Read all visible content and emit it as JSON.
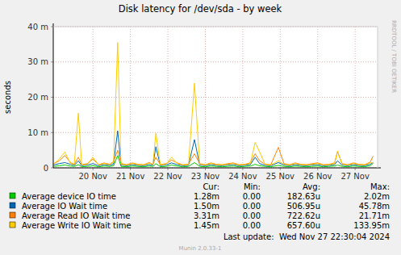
{
  "chart_data": {
    "type": "line",
    "title": "Disk latency for /dev/sda - by week",
    "y_label": "seconds",
    "side_text": "RRDTOOL / TOBI OETIKER",
    "x": [
      19.45,
      19.6,
      19.75,
      19.9,
      20.0,
      20.11,
      20.2,
      20.35,
      20.5,
      20.65,
      20.8,
      20.95,
      21.05,
      21.16,
      21.25,
      21.4,
      21.55,
      21.7,
      21.85,
      22.0,
      22.1,
      22.18,
      22.3,
      22.45,
      22.6,
      22.75,
      22.9,
      23.05,
      23.21,
      23.35,
      23.5,
      23.65,
      23.8,
      23.95,
      24.1,
      24.25,
      24.4,
      24.55,
      24.7,
      24.83,
      24.95,
      25.1,
      25.25,
      25.45,
      25.6,
      25.75,
      25.9,
      26.05,
      26.2,
      26.35,
      26.5,
      26.65,
      26.8,
      26.95,
      27.03,
      27.15,
      27.3,
      27.45,
      27.6,
      27.75,
      27.9,
      27.98
    ],
    "xlim": [
      19.44,
      28.1
    ],
    "xticks": [
      {
        "value": 20.5,
        "label": "20 Nov"
      },
      {
        "value": 21.5,
        "label": "21 Nov"
      },
      {
        "value": 22.5,
        "label": "22 Nov"
      },
      {
        "value": 23.5,
        "label": "23 Nov"
      },
      {
        "value": 24.5,
        "label": "24 Nov"
      },
      {
        "value": 25.5,
        "label": "25 Nov"
      },
      {
        "value": 26.5,
        "label": "26 Nov"
      },
      {
        "value": 27.5,
        "label": "27 Nov"
      }
    ],
    "ylim": [
      0,
      0.04
    ],
    "yticks": [
      0,
      {
        "value": 0.01,
        "label": "10 m"
      },
      {
        "value": 0.02,
        "label": "20 m"
      },
      {
        "value": 0.03,
        "label": "30 m"
      },
      {
        "value": 0.04,
        "label": "40 m"
      }
    ],
    "grid": true,
    "series": [
      {
        "name": "Average device IO time",
        "color": "#00cc00",
        "values": [
          0.0004,
          0.0006,
          0.0008,
          0.0005,
          0.0004,
          0.0009,
          0.0003,
          0.0004,
          0.0006,
          0.0003,
          0.0005,
          0.0004,
          0.0006,
          0.0035,
          0.0004,
          0.0003,
          0.0005,
          0.0004,
          0.0003,
          0.0005,
          0.0004,
          0.0012,
          0.0003,
          0.0004,
          0.0008,
          0.0005,
          0.0003,
          0.0004,
          0.0015,
          0.0004,
          0.0003,
          0.0005,
          0.0004,
          0.0003,
          0.0004,
          0.0005,
          0.0003,
          0.0004,
          0.0005,
          0.001,
          0.0006,
          0.0004,
          0.0003,
          0.0007,
          0.0004,
          0.0003,
          0.0005,
          0.0004,
          0.0003,
          0.0004,
          0.0005,
          0.0003,
          0.0004,
          0.0005,
          0.0008,
          0.0004,
          0.0003,
          0.0005,
          0.0004,
          0.0003,
          0.0006,
          0.00128
        ]
      },
      {
        "name": "Average IO Wait time",
        "color": "#0066b3",
        "values": [
          0.0008,
          0.0012,
          0.0015,
          0.001,
          0.0007,
          0.002,
          0.0006,
          0.0008,
          0.0012,
          0.0006,
          0.0009,
          0.0007,
          0.0011,
          0.0105,
          0.0008,
          0.0006,
          0.0009,
          0.0007,
          0.0006,
          0.0009,
          0.0007,
          0.006,
          0.0006,
          0.0008,
          0.0014,
          0.0009,
          0.0006,
          0.0007,
          0.008,
          0.0008,
          0.0006,
          0.0009,
          0.0007,
          0.0006,
          0.0008,
          0.0009,
          0.0006,
          0.0007,
          0.0009,
          0.003,
          0.0012,
          0.0007,
          0.0006,
          0.0015,
          0.0008,
          0.0006,
          0.0009,
          0.0007,
          0.0006,
          0.0008,
          0.0009,
          0.0006,
          0.0007,
          0.0009,
          0.002,
          0.0008,
          0.0006,
          0.0009,
          0.0007,
          0.0006,
          0.001,
          0.0015
        ]
      },
      {
        "name": "Average Read IO Wait time",
        "color": "#ff8000",
        "values": [
          0.0012,
          0.002,
          0.0035,
          0.0015,
          0.001,
          0.003,
          0.0009,
          0.0012,
          0.0025,
          0.0009,
          0.0014,
          0.001,
          0.0018,
          0.005,
          0.0012,
          0.0009,
          0.0014,
          0.001,
          0.0009,
          0.0015,
          0.001,
          0.003,
          0.0009,
          0.0012,
          0.0022,
          0.0014,
          0.0009,
          0.001,
          0.004,
          0.0012,
          0.0009,
          0.0014,
          0.001,
          0.0009,
          0.0012,
          0.0014,
          0.0009,
          0.001,
          0.0014,
          0.004,
          0.002,
          0.001,
          0.0009,
          0.0058,
          0.0012,
          0.0009,
          0.0014,
          0.001,
          0.0009,
          0.0012,
          0.0014,
          0.0009,
          0.001,
          0.0014,
          0.0045,
          0.0012,
          0.0009,
          0.0014,
          0.001,
          0.0009,
          0.0016,
          0.0033
        ]
      },
      {
        "name": "Average Write IO Wait time",
        "color": "#ffcc00",
        "values": [
          0.001,
          0.0025,
          0.0045,
          0.0012,
          0.0009,
          0.0155,
          0.0008,
          0.001,
          0.003,
          0.0008,
          0.0012,
          0.0009,
          0.0016,
          0.0355,
          0.001,
          0.0008,
          0.0012,
          0.0009,
          0.0008,
          0.0013,
          0.0009,
          0.0098,
          0.0008,
          0.001,
          0.003,
          0.0012,
          0.0008,
          0.0009,
          0.024,
          0.001,
          0.0008,
          0.0012,
          0.0009,
          0.0008,
          0.001,
          0.0012,
          0.0008,
          0.0009,
          0.0012,
          0.0072,
          0.0045,
          0.0009,
          0.0008,
          0.002,
          0.001,
          0.0008,
          0.0012,
          0.0009,
          0.0008,
          0.001,
          0.0012,
          0.0008,
          0.0009,
          0.0012,
          0.0048,
          0.001,
          0.0008,
          0.0012,
          0.0009,
          0.0008,
          0.0014,
          0.00145
        ]
      }
    ],
    "summary": {
      "columns": [
        "Cur:",
        "Min:",
        "Avg:",
        "Max:"
      ],
      "rows": [
        [
          "1.28m",
          "0.00",
          "182.63u",
          "2.02m"
        ],
        [
          "1.50m",
          "0.00",
          "506.95u",
          "45.78m"
        ],
        [
          "3.31m",
          "0.00",
          "722.62u",
          "21.71m"
        ],
        [
          "1.45m",
          "0.00",
          "657.60u",
          "133.95m"
        ]
      ]
    },
    "last_update": "Last update:  Wed Nov 27 22:30:04 2024",
    "footer": "Munin 2.0.33-1"
  }
}
